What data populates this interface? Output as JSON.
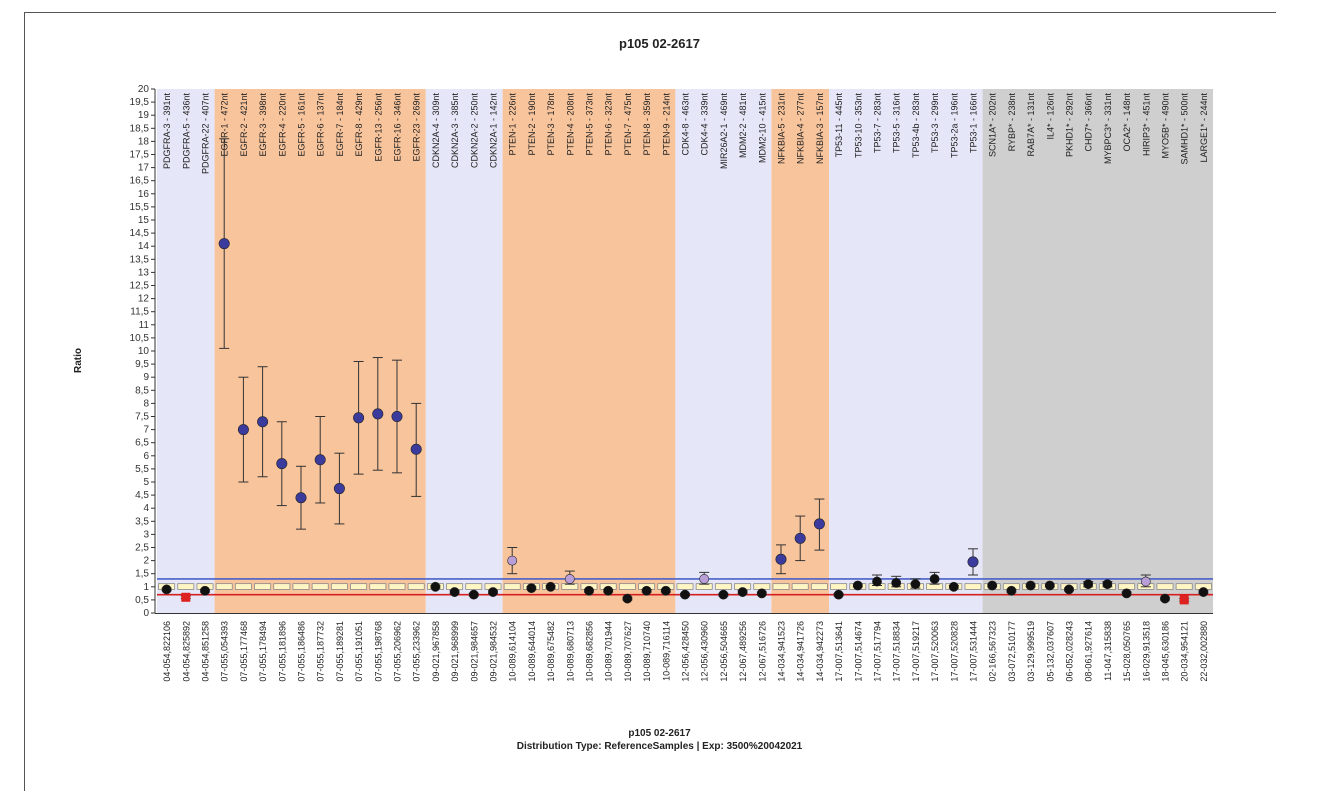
{
  "chart_data": {
    "type": "scatter",
    "title": "p105 02-2617",
    "ylabel": "Ratio",
    "xlabel_lines": [
      "p105 02-2617",
      "Distribution Type: ReferenceSamples | Exp: 3500%20042021"
    ],
    "ylim": [
      0,
      20
    ],
    "yticks": [
      "0",
      "0,5",
      "1",
      "1,5",
      "2",
      "2,5",
      "3",
      "3,5",
      "4",
      "4,5",
      "5",
      "5,5",
      "6",
      "6,5",
      "7",
      "7,5",
      "8",
      "8,5",
      "9",
      "9,5",
      "10",
      "10,5",
      "11",
      "11,5",
      "12",
      "12,5",
      "13",
      "13,5",
      "14",
      "14,5",
      "15",
      "15,5",
      "16",
      "16,5",
      "17",
      "17,5",
      "18",
      "18,5",
      "19",
      "19,5",
      "20"
    ],
    "reference_lines": {
      "upper": 1.3,
      "lower": 0.7
    },
    "group_colors": {
      "A": "#e5e6f7",
      "B": "#f8c49c",
      "C": "#cfcfcf"
    },
    "marker_colors": {
      "neutral": "#111111",
      "gain": "#3b3b9e",
      "loss": "#dd2222",
      "mild": "#b99ed8"
    },
    "groups": [
      {
        "color": "A",
        "count": 3
      },
      {
        "color": "B",
        "count": 11
      },
      {
        "color": "A",
        "count": 4
      },
      {
        "color": "B",
        "count": 9
      },
      {
        "color": "A",
        "count": 5
      },
      {
        "color": "B",
        "count": 3
      },
      {
        "color": "A",
        "count": 8
      },
      {
        "color": "C",
        "count": 12
      }
    ],
    "probes": [
      {
        "label": "PDGFRA-3 - 391nt",
        "x": "04-054,822106",
        "y": 0.9,
        "lo": 0.85,
        "hi": 0.95,
        "m": "neutral"
      },
      {
        "label": "PDGFRA-5 - 436nt",
        "x": "04-054,825892",
        "y": 0.6,
        "lo": 0.55,
        "hi": 0.65,
        "m": "loss"
      },
      {
        "label": "PDGFRA-22 - 407nt",
        "x": "04-054,851258",
        "y": 0.85,
        "lo": 0.8,
        "hi": 0.9,
        "m": "neutral"
      },
      {
        "label": "EGFR-1 - 472nt",
        "x": "07-055,054393",
        "y": 14.1,
        "lo": 10.1,
        "hi": 18.1,
        "m": "gain"
      },
      {
        "label": "EGFR-2 - 421nt",
        "x": "07-055,177468",
        "y": 7.0,
        "lo": 5.0,
        "hi": 9.0,
        "m": "gain"
      },
      {
        "label": "EGFR-3 - 398nt",
        "x": "07-055,178494",
        "y": 7.3,
        "lo": 5.2,
        "hi": 9.4,
        "m": "gain"
      },
      {
        "label": "EGFR-4 - 220nt",
        "x": "07-055,181896",
        "y": 5.7,
        "lo": 4.1,
        "hi": 7.3,
        "m": "gain"
      },
      {
        "label": "EGFR-5 - 161nt",
        "x": "07-055,186486",
        "y": 4.4,
        "lo": 3.2,
        "hi": 5.6,
        "m": "gain"
      },
      {
        "label": "EGFR-6 - 137nt",
        "x": "07-055,187732",
        "y": 5.85,
        "lo": 4.2,
        "hi": 7.5,
        "m": "gain"
      },
      {
        "label": "EGFR-7 - 184nt",
        "x": "07-055,189281",
        "y": 4.75,
        "lo": 3.4,
        "hi": 6.1,
        "m": "gain"
      },
      {
        "label": "EGFR-8 - 429nt",
        "x": "07-055,191051",
        "y": 7.45,
        "lo": 5.3,
        "hi": 9.6,
        "m": "gain"
      },
      {
        "label": "EGFR-13 - 256nt",
        "x": "07-055,198768",
        "y": 7.6,
        "lo": 5.45,
        "hi": 9.75,
        "m": "gain"
      },
      {
        "label": "EGFR-16 - 346nt",
        "x": "07-055,206962",
        "y": 7.5,
        "lo": 5.35,
        "hi": 9.65,
        "m": "gain"
      },
      {
        "label": "EGFR-23 - 269nt",
        "x": "07-055,233962",
        "y": 6.25,
        "lo": 4.45,
        "hi": 8.0,
        "m": "gain"
      },
      {
        "label": "CDKN2A-4 - 309nt",
        "x": "09-021,967858",
        "y": 1.0,
        "lo": 0.95,
        "hi": 1.05,
        "m": "neutral"
      },
      {
        "label": "CDKN2A-3 - 385nt",
        "x": "09-021,968999",
        "y": 0.8,
        "lo": 0.75,
        "hi": 0.85,
        "m": "neutral"
      },
      {
        "label": "CDKN2A-2 - 250nt",
        "x": "09-021,984657",
        "y": 0.7,
        "lo": 0.65,
        "hi": 0.75,
        "m": "neutral"
      },
      {
        "label": "CDKN2A-1 - 142nt",
        "x": "09-021,984532",
        "y": 0.8,
        "lo": 0.75,
        "hi": 0.85,
        "m": "neutral"
      },
      {
        "label": "PTEN-1 - 226nt",
        "x": "10-089,614104",
        "y": 2.0,
        "lo": 1.5,
        "hi": 2.5,
        "m": "mild"
      },
      {
        "label": "PTEN-2 - 190nt",
        "x": "10-089,644014",
        "y": 0.95,
        "lo": 0.9,
        "hi": 1.0,
        "m": "neutral"
      },
      {
        "label": "PTEN-3 - 178nt",
        "x": "10-089,675482",
        "y": 1.0,
        "lo": 0.95,
        "hi": 1.05,
        "m": "neutral"
      },
      {
        "label": "PTEN-4 - 208nt",
        "x": "10-089,680713",
        "y": 1.3,
        "lo": 1.1,
        "hi": 1.6,
        "m": "mild"
      },
      {
        "label": "PTEN-5 - 373nt",
        "x": "10-089,682856",
        "y": 0.85,
        "lo": 0.8,
        "hi": 0.9,
        "m": "neutral"
      },
      {
        "label": "PTEN-6 - 323nt",
        "x": "10-089,701944",
        "y": 0.85,
        "lo": 0.8,
        "hi": 0.9,
        "m": "neutral"
      },
      {
        "label": "PTEN-7 - 475nt",
        "x": "10-089,707627",
        "y": 0.55,
        "lo": 0.5,
        "hi": 0.6,
        "m": "neutral"
      },
      {
        "label": "PTEN-8 - 359nt",
        "x": "10-089,710740",
        "y": 0.85,
        "lo": 0.8,
        "hi": 0.9,
        "m": "neutral"
      },
      {
        "label": "PTEN-9 - 214nt",
        "x": "10-089,716114",
        "y": 0.85,
        "lo": 0.8,
        "hi": 0.9,
        "m": "neutral"
      },
      {
        "label": "CDK4-8 - 463nt",
        "x": "12-056,428450",
        "y": 0.7,
        "lo": 0.65,
        "hi": 0.75,
        "m": "neutral"
      },
      {
        "label": "CDK4-4 - 339nt",
        "x": "12-056,430960",
        "y": 1.3,
        "lo": 1.1,
        "hi": 1.55,
        "m": "mild"
      },
      {
        "label": "MIR26A2-1 - 469nt",
        "x": "12-056,504665",
        "y": 0.7,
        "lo": 0.65,
        "hi": 0.75,
        "m": "neutral"
      },
      {
        "label": "MDM2-2 - 481nt",
        "x": "12-067,489256",
        "y": 0.8,
        "lo": 0.75,
        "hi": 0.85,
        "m": "neutral"
      },
      {
        "label": "MDM2-10 - 415nt",
        "x": "12-067,516726",
        "y": 0.75,
        "lo": 0.7,
        "hi": 0.8,
        "m": "neutral"
      },
      {
        "label": "NFKBIA-5 - 231nt",
        "x": "14-034,941523",
        "y": 2.05,
        "lo": 1.5,
        "hi": 2.6,
        "m": "gain"
      },
      {
        "label": "NFKBIA-4 - 277nt",
        "x": "14-034,941726",
        "y": 2.85,
        "lo": 2.0,
        "hi": 3.7,
        "m": "gain"
      },
      {
        "label": "NFKBIA-3 - 157nt",
        "x": "14-034,942273",
        "y": 3.4,
        "lo": 2.4,
        "hi": 4.35,
        "m": "gain"
      },
      {
        "label": "TP53-11 - 445nt",
        "x": "17-007,513641",
        "y": 0.7,
        "lo": 0.65,
        "hi": 0.75,
        "m": "neutral"
      },
      {
        "label": "TP53-10 - 353nt",
        "x": "17-007,514674",
        "y": 1.05,
        "lo": 1.0,
        "hi": 1.1,
        "m": "neutral"
      },
      {
        "label": "TP53-7 - 283nt",
        "x": "17-007,517794",
        "y": 1.2,
        "lo": 1.05,
        "hi": 1.45,
        "m": "neutral"
      },
      {
        "label": "TP53-5 - 316nt",
        "x": "17-007,518834",
        "y": 1.15,
        "lo": 1.0,
        "hi": 1.4,
        "m": "neutral"
      },
      {
        "label": "TP53-4b - 283nt",
        "x": "17-007,519217",
        "y": 1.1,
        "lo": 0.95,
        "hi": 1.3,
        "m": "neutral"
      },
      {
        "label": "TP53-3 - 299nt",
        "x": "17-007,520063",
        "y": 1.3,
        "lo": 1.1,
        "hi": 1.55,
        "m": "neutral"
      },
      {
        "label": "TP53-2a - 196nt",
        "x": "17-007,520828",
        "y": 1.0,
        "lo": 0.95,
        "hi": 1.05,
        "m": "neutral"
      },
      {
        "label": "TP53-1 - 166nt",
        "x": "17-007,531444",
        "y": 1.95,
        "lo": 1.45,
        "hi": 2.45,
        "m": "gain"
      },
      {
        "label": "SCN1A* - 202nt",
        "x": "02-166,567323",
        "y": 1.05,
        "lo": 1.0,
        "hi": 1.1,
        "m": "neutral"
      },
      {
        "label": "RYBP* - 238nt",
        "x": "03-072,510177",
        "y": 0.85,
        "lo": 0.8,
        "hi": 0.9,
        "m": "neutral"
      },
      {
        "label": "RAB7A* - 131nt",
        "x": "03-129,999519",
        "y": 1.05,
        "lo": 1.0,
        "hi": 1.1,
        "m": "neutral"
      },
      {
        "label": "IL4* - 126nt",
        "x": "05-132,037607",
        "y": 1.05,
        "lo": 1.0,
        "hi": 1.1,
        "m": "neutral"
      },
      {
        "label": "PKHD1* - 292nt",
        "x": "06-052,028243",
        "y": 0.9,
        "lo": 0.85,
        "hi": 0.95,
        "m": "neutral"
      },
      {
        "label": "CHD7* - 366nt",
        "x": "08-061,927614",
        "y": 1.1,
        "lo": 1.0,
        "hi": 1.2,
        "m": "neutral"
      },
      {
        "label": "MYBPC3* - 331nt",
        "x": "11-047,315838",
        "y": 1.1,
        "lo": 1.0,
        "hi": 1.2,
        "m": "neutral"
      },
      {
        "label": "OCA2* - 148nt",
        "x": "15-028,050765",
        "y": 0.75,
        "lo": 0.7,
        "hi": 0.8,
        "m": "neutral"
      },
      {
        "label": "HIRIP3* - 451nt",
        "x": "16-029,913518",
        "y": 1.2,
        "lo": 1.0,
        "hi": 1.45,
        "m": "mild"
      },
      {
        "label": "MYO5B* - 490nt",
        "x": "18-045,630186",
        "y": 0.55,
        "lo": 0.5,
        "hi": 0.6,
        "m": "neutral"
      },
      {
        "label": "SAMHD1* - 500nt",
        "x": "20-034,954121",
        "y": 0.5,
        "lo": 0.45,
        "hi": 0.55,
        "m": "loss"
      },
      {
        "label": "LARGE1* - 244nt",
        "x": "22-032,002880",
        "y": 0.8,
        "lo": 0.75,
        "hi": 0.85,
        "m": "neutral"
      }
    ]
  }
}
